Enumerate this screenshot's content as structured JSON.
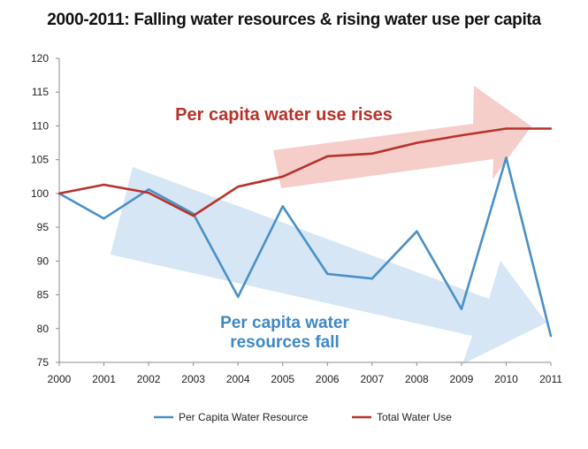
{
  "chart_data": {
    "type": "line",
    "title": "2000-2011: Falling water resources  & rising water use per capita",
    "xlabel": "",
    "ylabel": "",
    "x": [
      "2000",
      "2001",
      "2002",
      "2003",
      "2004",
      "2005",
      "2006",
      "2007",
      "2008",
      "2009",
      "2010",
      "2011"
    ],
    "ylim": [
      75,
      120
    ],
    "yticks": [
      75,
      80,
      85,
      90,
      95,
      100,
      105,
      110,
      115,
      120
    ],
    "grid": false,
    "legend_position": "bottom",
    "series": [
      {
        "name": "Per Capita Water Resource",
        "color": "#4a90c8",
        "values": [
          100,
          96.3,
          100.6,
          97.0,
          84.7,
          98.1,
          88.1,
          87.4,
          94.4,
          82.9,
          105.3,
          78.9
        ]
      },
      {
        "name": "Total Water Use",
        "color": "#b8322a",
        "values": [
          100,
          101.3,
          100.1,
          96.7,
          101.0,
          102.5,
          105.5,
          105.9,
          107.5,
          108.6,
          109.6,
          109.6
        ]
      }
    ],
    "annotations": [
      {
        "id": "use",
        "text": "Per capita water use rises",
        "color": "#b8322a",
        "arrow_color": "#f3c4c0"
      },
      {
        "id": "res",
        "lines": [
          "Per capita water",
          "resources fall"
        ],
        "color": "#3f88c5",
        "arrow_color": "#cfe2f3"
      }
    ]
  }
}
